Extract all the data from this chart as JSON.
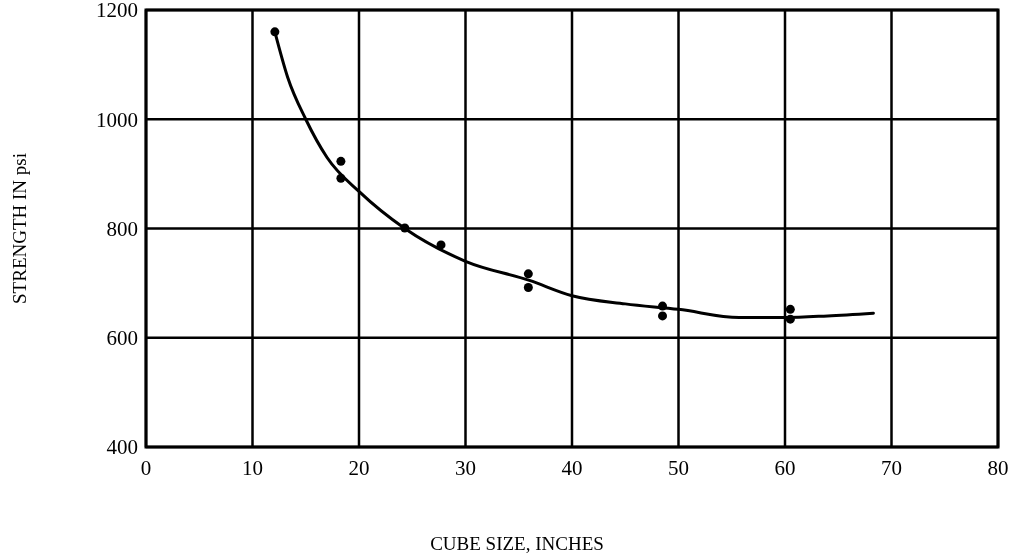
{
  "chart_data": {
    "type": "scatter",
    "xlabel": "CUBE SIZE, INCHES",
    "ylabel": "STRENGTH IN psi",
    "xlim": [
      0,
      80
    ],
    "xticks": [
      0,
      10,
      20,
      30,
      40,
      50,
      60,
      70,
      80
    ],
    "ylim": [
      400,
      1200
    ],
    "yticks": [
      400,
      600,
      800,
      1000,
      1200
    ],
    "grid": true,
    "marker": "circle",
    "series": [
      {
        "color": "#000000",
        "x": [
          12.1,
          18.3,
          18.3,
          24.3,
          27.7,
          35.9,
          35.9,
          48.5,
          48.5,
          60.5,
          60.5
        ],
        "values": [
          1160,
          923,
          892,
          801,
          770,
          717,
          692,
          658,
          640,
          652,
          634
        ]
      },
      {
        "type": "line",
        "color": "#000000",
        "line_style": "solid",
        "marker": "none",
        "x": [
          12.1,
          13.3,
          15,
          17,
          20.1,
          24.3,
          30,
          36,
          40,
          45,
          50,
          55.7,
          60,
          64,
          68.3
        ],
        "values": [
          1160,
          1077,
          1000,
          930,
          866,
          800,
          740,
          705,
          677,
          662,
          652,
          637,
          637,
          640,
          645
        ]
      }
    ]
  }
}
